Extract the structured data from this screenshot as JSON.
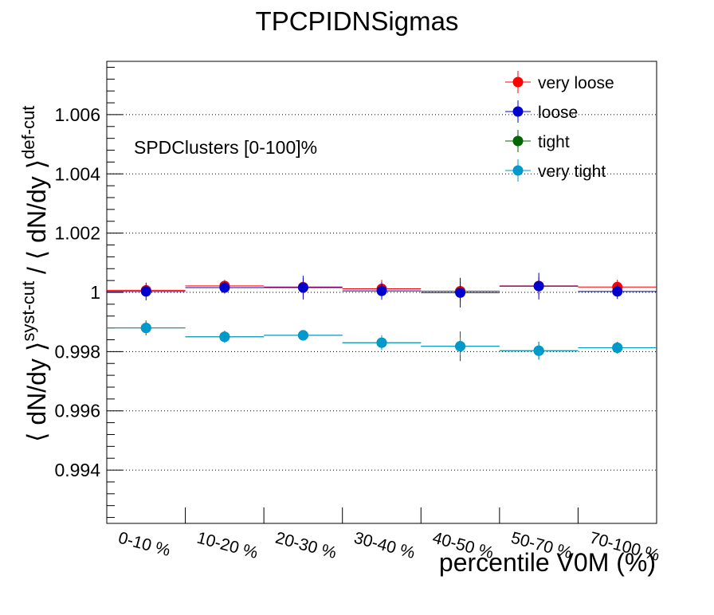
{
  "chart_data": {
    "type": "scatter",
    "title": "TPCPIDNSigmas",
    "xlabel": "percentile V0M (%)",
    "ylabel": {
      "prefix": "⟨ dN/dy ⟩",
      "sup1": "syst-cut",
      "mid": " / ⟨ dN/dy ⟩",
      "sup2": "def-cut"
    },
    "annotation": "SPDClusters [0-100]%",
    "categories": [
      "0-10 %",
      "10-20 %",
      "20-30 %",
      "30-40 %",
      "40-50 %",
      "50-70 %",
      "70-100 %"
    ],
    "ylim": [
      0.9922,
      1.0078
    ],
    "yticks": [
      {
        "value": 0.994,
        "label": "0.994"
      },
      {
        "value": 0.996,
        "label": "0.996"
      },
      {
        "value": 0.998,
        "label": "0.998"
      },
      {
        "value": 1.0,
        "label": "1"
      },
      {
        "value": 1.002,
        "label": "1.002"
      },
      {
        "value": 1.004,
        "label": "1.004"
      },
      {
        "value": 1.006,
        "label": "1.006"
      }
    ],
    "grid_y": true,
    "legend_position": "top-right",
    "series": [
      {
        "name": "very loose",
        "color": "#ff0000",
        "values": [
          1.00007,
          1.00022,
          1.00018,
          1.00012,
          1.00004,
          1.00022,
          1.00018
        ],
        "errors": [
          0.00015,
          0.0002,
          0.0003,
          0.0003,
          0.00035,
          0.0003,
          0.00025
        ]
      },
      {
        "name": "loose",
        "color": "#0000cc",
        "values": [
          1.00003,
          1.00016,
          1.00016,
          1.00005,
          0.99999,
          1.00021,
          1.00003
        ],
        "errors": [
          0.0003,
          0.0002,
          0.0004,
          0.0003,
          0.0005,
          0.00045,
          0.00025
        ]
      },
      {
        "name": "tight",
        "color": "#006600",
        "values": [
          0.9988,
          0.9985,
          0.99855,
          0.9983,
          0.99818,
          0.99803,
          0.99813
        ],
        "errors": [
          0.00025,
          0.0002,
          0.00015,
          0.00025,
          0.0005,
          0.0003,
          0.0002
        ]
      },
      {
        "name": "very tight",
        "color": "#0099cc",
        "values": [
          0.9988,
          0.9985,
          0.99855,
          0.9983,
          0.99818,
          0.99803,
          0.99813
        ],
        "errors": [
          0.00025,
          0.0002,
          0.00015,
          0.00025,
          0.0003,
          0.0003,
          0.0002
        ]
      }
    ]
  }
}
